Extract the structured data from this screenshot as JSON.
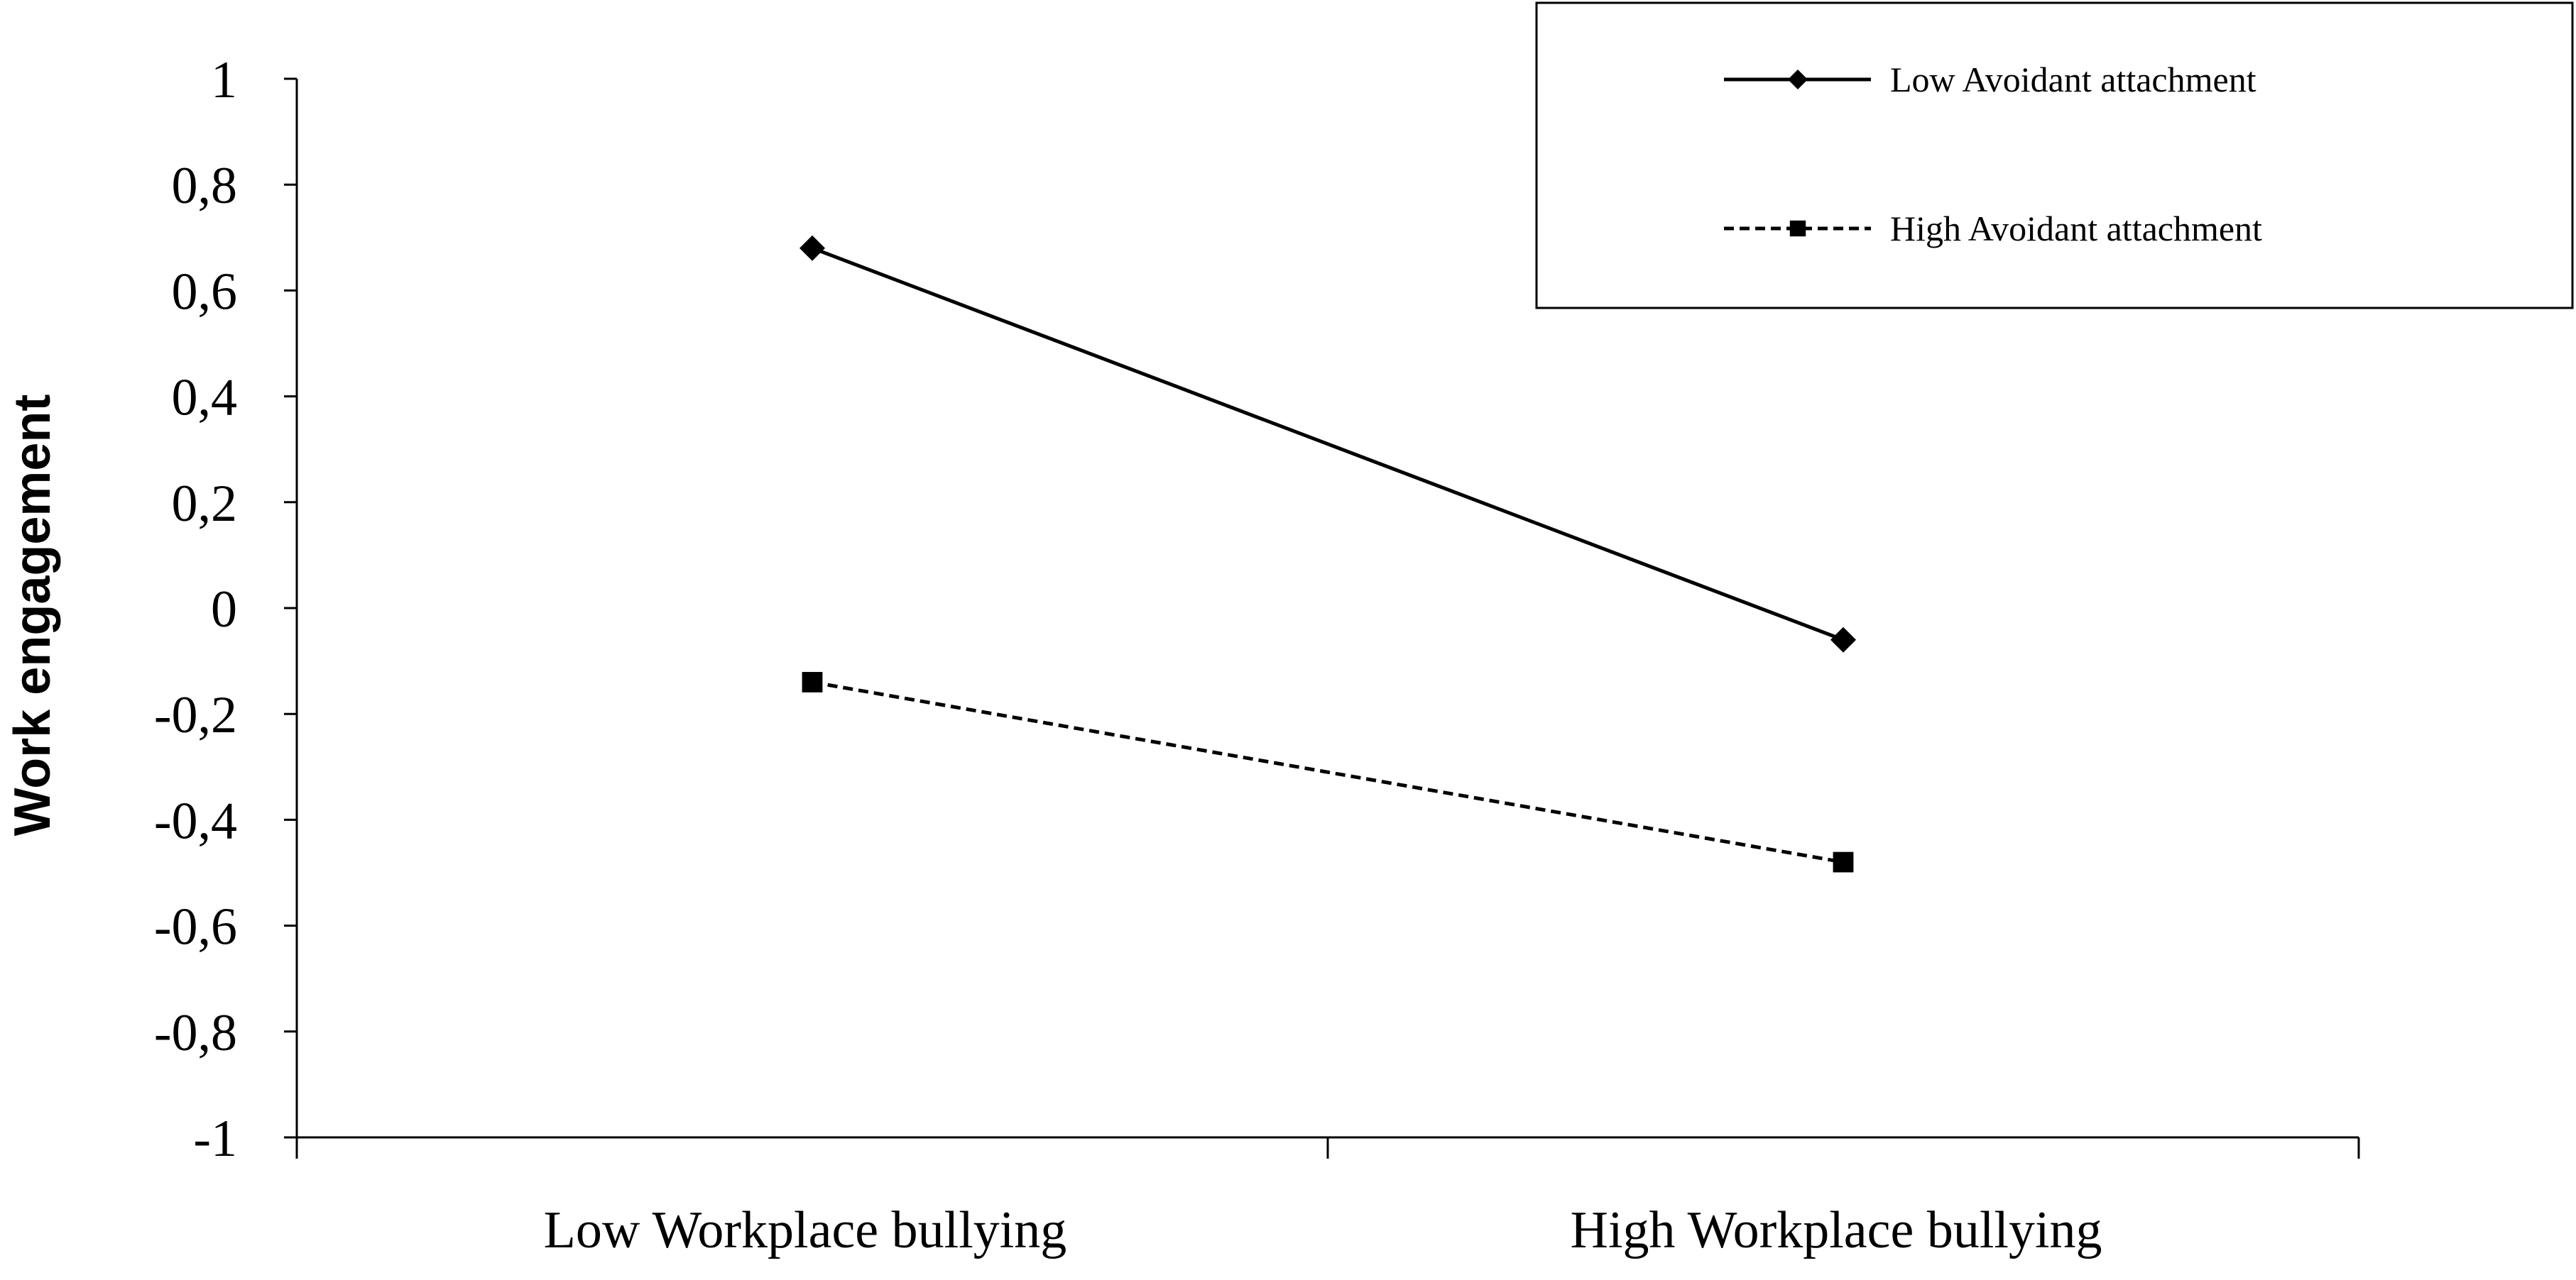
{
  "chart_data": {
    "type": "line",
    "title": "",
    "xlabel": "",
    "ylabel": "Work engagement",
    "categories": [
      "Low Workplace bullying",
      "High Workplace bullying"
    ],
    "ylim": [
      -1,
      1
    ],
    "yticks": [
      "1",
      "0,8",
      "0,6",
      "0,4",
      "0,2",
      "0",
      "-0,2",
      "-0,4",
      "-0,6",
      "-0,8",
      "-1"
    ],
    "ytick_values": [
      1,
      0.8,
      0.6,
      0.4,
      0.2,
      0,
      -0.2,
      -0.4,
      -0.6,
      -0.8,
      -1
    ],
    "grid": false,
    "legend_position": "top-right",
    "series": [
      {
        "name": "Low Avoidant attachment",
        "values": [
          0.68,
          -0.06
        ],
        "marker": "diamond",
        "line_style": "solid",
        "color": "#000000"
      },
      {
        "name": "High Avoidant attachment",
        "values": [
          -0.14,
          -0.48
        ],
        "marker": "square",
        "line_style": "dashed",
        "color": "#000000"
      }
    ]
  }
}
